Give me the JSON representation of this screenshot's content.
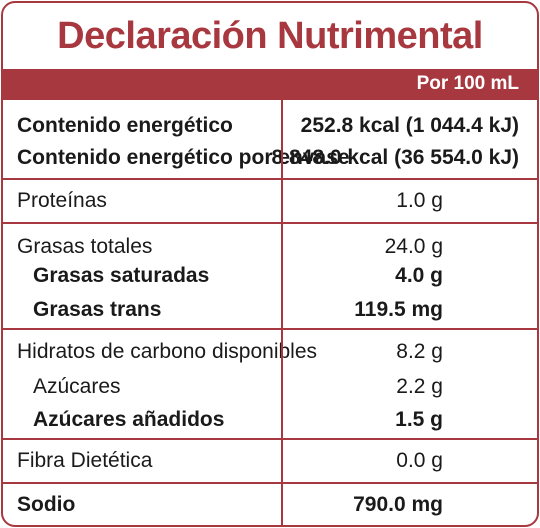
{
  "title": "Declaración Nutrimental",
  "header": {
    "per": "Por 100 mL"
  },
  "energy": {
    "label1": "Contenido energético",
    "value1": "252.8 kcal (1 044.4 kJ)",
    "label2": "Contenido energético por envase",
    "value2": "8 848.0 kcal (36 554.0 kJ)"
  },
  "proteins": {
    "label": "Proteínas",
    "value": "1.0 g"
  },
  "fats": {
    "label": "Grasas totales",
    "value": "24.0 g",
    "saturated_label": "Grasas saturadas",
    "saturated_value": "4.0 g",
    "trans_label": "Grasas trans",
    "trans_value": "119.5 mg"
  },
  "carbs": {
    "label": "Hidratos de carbono disponibles",
    "value": "8.2 g",
    "sugars_label": "Azúcares",
    "sugars_value": "2.2 g",
    "added_label": "Azúcares añadidos",
    "added_value": "1.5 g"
  },
  "fiber": {
    "label": "Fibra Dietética",
    "value": "0.0 g"
  },
  "sodium": {
    "label": "Sodio",
    "value": "790.0 mg"
  },
  "colors": {
    "accent": "#a8383f",
    "text": "#1a1a1a",
    "background": "#ffffff"
  }
}
